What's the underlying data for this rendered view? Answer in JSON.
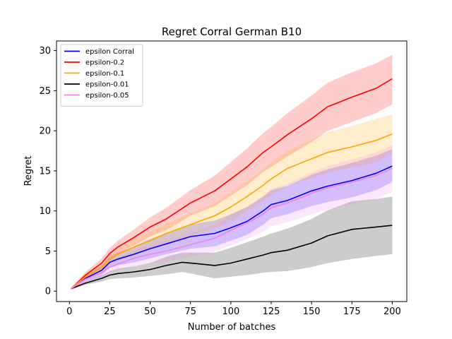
{
  "chart_data": {
    "type": "line",
    "title": "Regret Corral German B10",
    "xlabel": "Number of batches",
    "ylabel": "Regret",
    "xlim": [
      -8,
      209
    ],
    "ylim": [
      -1.3,
      31.2
    ],
    "xticks": [
      0,
      25,
      50,
      75,
      100,
      125,
      150,
      175,
      200
    ],
    "yticks": [
      0,
      5,
      10,
      15,
      20,
      25,
      30
    ],
    "grid": false,
    "legend_position": "top-left",
    "shaded_band": "uncertainty band around each series",
    "series": [
      {
        "name": "epsilon Corral",
        "color": "#0000ff",
        "points": [
          [
            1,
            0.3
          ],
          [
            10,
            1.6
          ],
          [
            20,
            2.6
          ],
          [
            25,
            3.6
          ],
          [
            30,
            4.0
          ],
          [
            40,
            4.6
          ],
          [
            50,
            5.3
          ],
          [
            60,
            5.9
          ],
          [
            75,
            6.8
          ],
          [
            90,
            7.2
          ],
          [
            100,
            7.9
          ],
          [
            110,
            8.7
          ],
          [
            120,
            10.0
          ],
          [
            125,
            10.8
          ],
          [
            135,
            11.3
          ],
          [
            150,
            12.5
          ],
          [
            160,
            13.1
          ],
          [
            175,
            13.8
          ],
          [
            190,
            14.7
          ],
          [
            200,
            15.6
          ]
        ],
        "band": [
          [
            1,
            0.2,
            0.4
          ],
          [
            10,
            1.2,
            2.0
          ],
          [
            20,
            2.0,
            3.2
          ],
          [
            25,
            2.9,
            4.3
          ],
          [
            30,
            3.2,
            4.8
          ],
          [
            40,
            3.6,
            5.6
          ],
          [
            50,
            4.1,
            6.5
          ],
          [
            60,
            4.6,
            7.2
          ],
          [
            75,
            5.3,
            8.3
          ],
          [
            90,
            5.6,
            8.8
          ],
          [
            100,
            6.3,
            9.6
          ],
          [
            110,
            7.0,
            10.5
          ],
          [
            120,
            8.3,
            11.8
          ],
          [
            125,
            9.1,
            12.6
          ],
          [
            135,
            9.6,
            13.1
          ],
          [
            150,
            10.6,
            14.5
          ],
          [
            160,
            11.1,
            15.2
          ],
          [
            175,
            11.7,
            16.0
          ],
          [
            190,
            12.6,
            16.9
          ],
          [
            200,
            13.6,
            17.7
          ]
        ]
      },
      {
        "name": "epsilon-0.2",
        "color": "#ff0000",
        "points": [
          [
            1,
            0.3
          ],
          [
            10,
            2.0
          ],
          [
            20,
            3.5
          ],
          [
            25,
            4.7
          ],
          [
            30,
            5.5
          ],
          [
            40,
            6.7
          ],
          [
            50,
            8.0
          ],
          [
            60,
            9.0
          ],
          [
            75,
            11.0
          ],
          [
            90,
            12.5
          ],
          [
            100,
            14.0
          ],
          [
            110,
            15.5
          ],
          [
            120,
            17.3
          ],
          [
            125,
            18.0
          ],
          [
            135,
            19.5
          ],
          [
            150,
            21.5
          ],
          [
            160,
            23.0
          ],
          [
            175,
            24.2
          ],
          [
            190,
            25.3
          ],
          [
            200,
            26.5
          ]
        ],
        "band": [
          [
            1,
            0.2,
            0.4
          ],
          [
            10,
            1.6,
            2.4
          ],
          [
            20,
            2.9,
            4.1
          ],
          [
            25,
            4.0,
            5.4
          ],
          [
            30,
            4.7,
            6.3
          ],
          [
            40,
            5.7,
            7.7
          ],
          [
            50,
            6.8,
            9.2
          ],
          [
            60,
            7.6,
            10.4
          ],
          [
            75,
            9.4,
            12.6
          ],
          [
            90,
            10.6,
            14.4
          ],
          [
            100,
            11.9,
            16.1
          ],
          [
            110,
            13.2,
            17.8
          ],
          [
            120,
            14.9,
            19.7
          ],
          [
            125,
            15.5,
            20.5
          ],
          [
            135,
            16.8,
            22.2
          ],
          [
            150,
            18.6,
            24.4
          ],
          [
            160,
            20.0,
            26.0
          ],
          [
            175,
            21.1,
            27.3
          ],
          [
            190,
            22.2,
            28.4
          ],
          [
            200,
            23.3,
            29.5
          ]
        ]
      },
      {
        "name": "epsilon-0.1",
        "color": "#ffa500",
        "points": [
          [
            1,
            0.3
          ],
          [
            10,
            1.8
          ],
          [
            20,
            2.9
          ],
          [
            25,
            3.9
          ],
          [
            30,
            4.6
          ],
          [
            40,
            5.5
          ],
          [
            50,
            6.3
          ],
          [
            60,
            7.2
          ],
          [
            75,
            8.3
          ],
          [
            90,
            9.4
          ],
          [
            100,
            10.5
          ],
          [
            110,
            11.8
          ],
          [
            120,
            13.2
          ],
          [
            125,
            14.0
          ],
          [
            135,
            15.3
          ],
          [
            150,
            16.5
          ],
          [
            160,
            17.3
          ],
          [
            175,
            18.0
          ],
          [
            190,
            18.8
          ],
          [
            200,
            19.6
          ]
        ],
        "band": [
          [
            1,
            0.2,
            0.4
          ],
          [
            10,
            1.4,
            2.2
          ],
          [
            20,
            2.3,
            3.5
          ],
          [
            25,
            3.2,
            4.6
          ],
          [
            30,
            3.8,
            5.4
          ],
          [
            40,
            4.5,
            6.5
          ],
          [
            50,
            5.2,
            7.4
          ],
          [
            60,
            6.0,
            8.4
          ],
          [
            75,
            6.9,
            9.7
          ],
          [
            90,
            7.8,
            11.0
          ],
          [
            100,
            8.7,
            12.3
          ],
          [
            110,
            9.9,
            13.7
          ],
          [
            120,
            11.2,
            15.2
          ],
          [
            125,
            11.9,
            16.1
          ],
          [
            135,
            13.1,
            17.5
          ],
          [
            150,
            14.1,
            18.9
          ],
          [
            160,
            14.8,
            19.8
          ],
          [
            175,
            15.4,
            20.6
          ],
          [
            190,
            16.1,
            21.5
          ],
          [
            200,
            17.2,
            22.0
          ]
        ]
      },
      {
        "name": "epsilon-0.01",
        "color": "#000000",
        "points": [
          [
            1,
            0.3
          ],
          [
            10,
            1.0
          ],
          [
            20,
            1.6
          ],
          [
            25,
            2.0
          ],
          [
            30,
            2.2
          ],
          [
            40,
            2.4
          ],
          [
            50,
            2.7
          ],
          [
            60,
            3.2
          ],
          [
            70,
            3.6
          ],
          [
            80,
            3.4
          ],
          [
            90,
            3.2
          ],
          [
            100,
            3.5
          ],
          [
            110,
            4.0
          ],
          [
            120,
            4.5
          ],
          [
            125,
            4.8
          ],
          [
            135,
            5.1
          ],
          [
            150,
            6.0
          ],
          [
            160,
            6.9
          ],
          [
            175,
            7.7
          ],
          [
            190,
            8.0
          ],
          [
            200,
            8.2
          ]
        ],
        "band": [
          [
            1,
            0.2,
            0.4
          ],
          [
            10,
            0.8,
            1.2
          ],
          [
            20,
            1.2,
            2.0
          ],
          [
            25,
            1.5,
            2.5
          ],
          [
            30,
            1.6,
            2.8
          ],
          [
            40,
            1.7,
            3.1
          ],
          [
            50,
            1.9,
            3.5
          ],
          [
            60,
            2.1,
            4.3
          ],
          [
            70,
            2.4,
            4.8
          ],
          [
            80,
            2.0,
            4.8
          ],
          [
            90,
            1.6,
            4.8
          ],
          [
            100,
            1.8,
            5.4
          ],
          [
            110,
            2.0,
            6.1
          ],
          [
            120,
            2.3,
            6.8
          ],
          [
            125,
            2.4,
            7.2
          ],
          [
            135,
            2.5,
            7.8
          ],
          [
            150,
            3.0,
            9.0
          ],
          [
            160,
            3.5,
            10.1
          ],
          [
            175,
            4.0,
            11.2
          ],
          [
            190,
            4.4,
            11.5
          ],
          [
            200,
            4.6,
            11.8
          ]
        ]
      },
      {
        "name": "epsilon-0.05",
        "color": "#ee82ee",
        "points": [
          [
            1,
            0.3
          ],
          [
            10,
            1.5
          ],
          [
            20,
            2.3
          ],
          [
            25,
            3.0
          ],
          [
            30,
            3.4
          ],
          [
            40,
            4.1
          ],
          [
            50,
            4.6
          ],
          [
            60,
            5.0
          ],
          [
            75,
            5.8
          ],
          [
            90,
            6.6
          ],
          [
            100,
            7.6
          ],
          [
            110,
            8.5
          ],
          [
            120,
            9.6
          ],
          [
            125,
            10.4
          ],
          [
            135,
            11.0
          ],
          [
            150,
            12.2
          ],
          [
            160,
            12.9
          ],
          [
            175,
            13.6
          ],
          [
            190,
            14.4
          ],
          [
            200,
            15.3
          ]
        ],
        "band": [
          [
            1,
            0.2,
            0.4
          ],
          [
            10,
            1.1,
            1.9
          ],
          [
            20,
            1.7,
            2.9
          ],
          [
            25,
            2.3,
            3.7
          ],
          [
            30,
            2.6,
            4.2
          ],
          [
            40,
            3.1,
            5.1
          ],
          [
            50,
            3.4,
            5.8
          ],
          [
            60,
            3.7,
            6.3
          ],
          [
            75,
            4.3,
            7.3
          ],
          [
            90,
            4.9,
            8.3
          ],
          [
            100,
            5.7,
            9.5
          ],
          [
            110,
            6.5,
            10.5
          ],
          [
            120,
            7.4,
            11.8
          ],
          [
            125,
            8.1,
            12.7
          ],
          [
            135,
            8.6,
            13.4
          ],
          [
            150,
            9.6,
            14.8
          ],
          [
            160,
            10.2,
            15.6
          ],
          [
            175,
            10.8,
            16.4
          ],
          [
            190,
            11.5,
            17.3
          ],
          [
            200,
            12.4,
            18.2
          ]
        ]
      }
    ]
  }
}
